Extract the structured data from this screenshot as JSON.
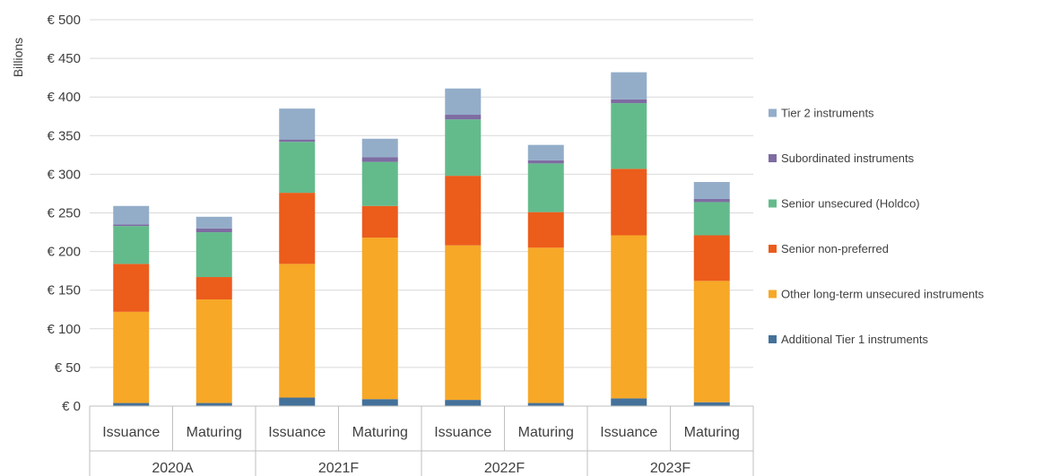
{
  "chart_data": {
    "type": "bar",
    "stacked": true,
    "ylabel": "Billions",
    "ylim": [
      0,
      500
    ],
    "ytick_step": 50,
    "ytick_labels": [
      "€ 0",
      "€ 50",
      "€ 100",
      "€ 150",
      "€ 200",
      "€ 250",
      "€ 300",
      "€ 350",
      "€ 400",
      "€ 450",
      "€ 500"
    ],
    "grid": true,
    "legend_position": "right",
    "groups": [
      "2020A",
      "2021F",
      "2022F",
      "2023F"
    ],
    "categories": [
      "Issuance",
      "Maturing",
      "Issuance",
      "Maturing",
      "Issuance",
      "Maturing",
      "Issuance",
      "Maturing"
    ],
    "series": [
      {
        "name": "Additional Tier 1 instruments",
        "color": "#44719A",
        "values": [
          4,
          4,
          11,
          9,
          8,
          4,
          10,
          5
        ]
      },
      {
        "name": "Other long-term unsecured instruments",
        "color": "#F7A826",
        "values": [
          118,
          134,
          173,
          209,
          200,
          201,
          211,
          157
        ]
      },
      {
        "name": "Senior non-preferred",
        "color": "#EC5C1B",
        "values": [
          62,
          29,
          92,
          41,
          90,
          46,
          86,
          59
        ]
      },
      {
        "name": "Senior unsecured (Holdco)",
        "color": "#63BB8B",
        "values": [
          49,
          58,
          66,
          57,
          73,
          63,
          85,
          43
        ]
      },
      {
        "name": "Subordinated instruments",
        "color": "#7E6CA2",
        "values": [
          2,
          5,
          3,
          6,
          6,
          4,
          5,
          4
        ]
      },
      {
        "name": "Tier 2 instruments",
        "color": "#93ADC9",
        "values": [
          24,
          15,
          40,
          24,
          34,
          20,
          35,
          22
        ]
      }
    ]
  }
}
